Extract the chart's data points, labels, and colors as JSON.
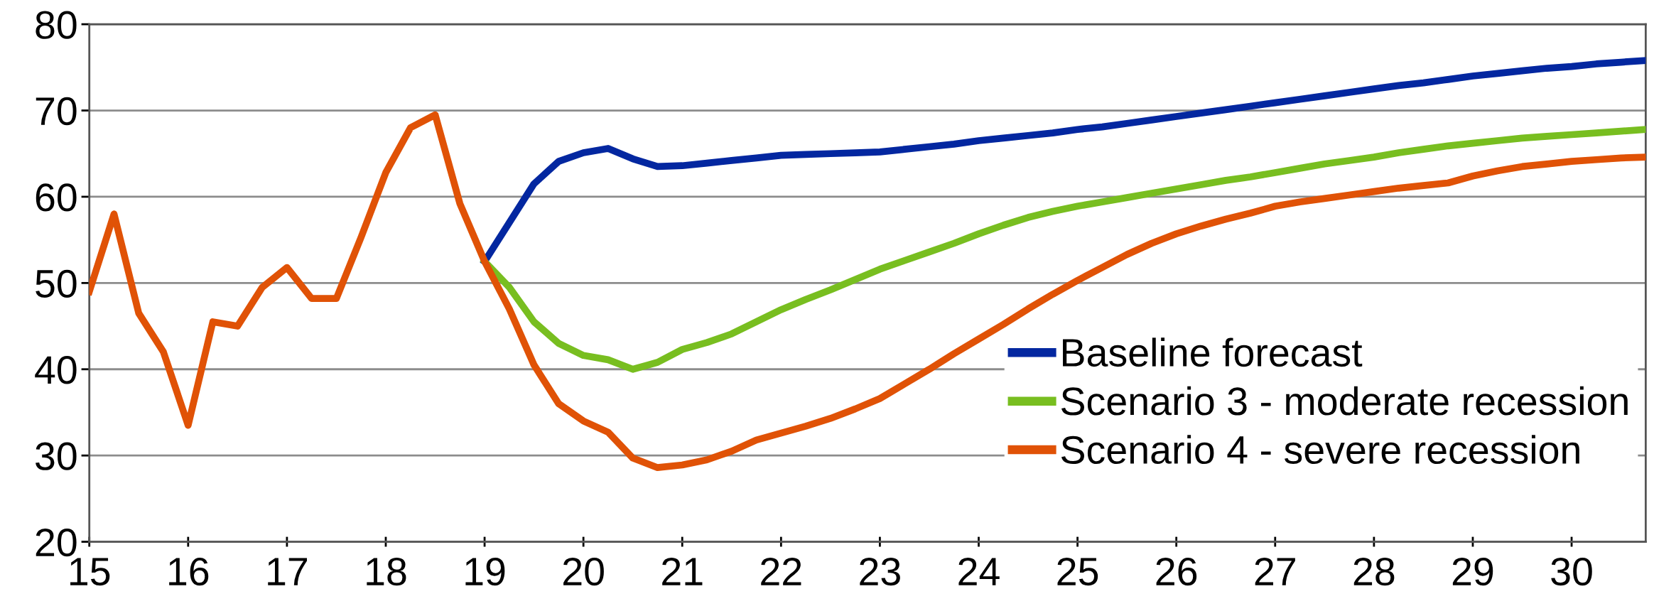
{
  "chart_data": {
    "type": "line",
    "xlim": [
      15,
      30.75
    ],
    "xticks": [
      15,
      16,
      17,
      18,
      19,
      20,
      21,
      22,
      23,
      24,
      25,
      26,
      27,
      28,
      29,
      30
    ],
    "ylim": [
      20,
      80
    ],
    "yticks": [
      20,
      30,
      40,
      50,
      60,
      70,
      80
    ],
    "grid": "y",
    "legend": "bottom right",
    "marker": "none",
    "line_style": "solid",
    "series": [
      {
        "name": "Baseline forecast",
        "color": "#0327a0",
        "x": [
          19,
          19.25,
          19.5,
          19.75,
          20,
          20.25,
          20.5,
          20.75,
          21,
          21.25,
          21.5,
          21.75,
          22,
          22.25,
          22.5,
          22.75,
          23,
          23.25,
          23.5,
          23.75,
          24,
          24.25,
          24.5,
          24.75,
          25,
          25.25,
          25.5,
          25.75,
          26,
          26.25,
          26.5,
          26.75,
          27,
          27.25,
          27.5,
          27.75,
          28,
          28.25,
          28.5,
          28.75,
          29,
          29.25,
          29.5,
          29.75,
          30,
          30.25,
          30.5,
          30.75
        ],
        "values": [
          52.5,
          57,
          61.5,
          64.1,
          65.1,
          65.6,
          64.4,
          63.5,
          63.6,
          63.9,
          64.2,
          64.5,
          64.8,
          64.9,
          65,
          65.1,
          65.2,
          65.5,
          65.8,
          66.1,
          66.5,
          66.8,
          67.1,
          67.4,
          67.8,
          68.1,
          68.5,
          68.9,
          69.3,
          69.7,
          70.1,
          70.5,
          70.9,
          71.3,
          71.7,
          72.1,
          72.5,
          72.9,
          73.2,
          73.6,
          74,
          74.3,
          74.6,
          74.9,
          75.1,
          75.4,
          75.6,
          75.8
        ]
      },
      {
        "name": "Scenario 3 - moderate recession",
        "color": "#78be20",
        "x": [
          19,
          19.25,
          19.5,
          19.75,
          20,
          20.25,
          20.5,
          20.75,
          21,
          21.25,
          21.5,
          21.75,
          22,
          22.25,
          22.5,
          22.75,
          23,
          23.25,
          23.5,
          23.75,
          24,
          24.25,
          24.5,
          24.75,
          25,
          25.25,
          25.5,
          25.75,
          26,
          26.25,
          26.5,
          26.75,
          27,
          27.25,
          27.5,
          27.75,
          28,
          28.25,
          28.5,
          28.75,
          29,
          29.25,
          29.5,
          29.75,
          30,
          30.25,
          30.5,
          30.75
        ],
        "values": [
          52.5,
          49.5,
          45.5,
          43,
          41.6,
          41.1,
          40,
          40.8,
          42.3,
          43.1,
          44.1,
          45.5,
          46.9,
          48.1,
          49.2,
          50.4,
          51.6,
          52.6,
          53.6,
          54.6,
          55.7,
          56.7,
          57.6,
          58.3,
          58.9,
          59.4,
          59.9,
          60.4,
          60.9,
          61.4,
          61.9,
          62.3,
          62.8,
          63.3,
          63.8,
          64.2,
          64.6,
          65.1,
          65.5,
          65.9,
          66.2,
          66.5,
          66.8,
          67,
          67.2,
          67.4,
          67.6,
          67.8
        ]
      },
      {
        "name": "Scenario 4 - severe recession",
        "color": "#e05206",
        "x": [
          15,
          15.25,
          15.5,
          15.75,
          16,
          16.25,
          16.5,
          16.75,
          17,
          17.25,
          17.5,
          17.75,
          18,
          18.25,
          18.5,
          18.75,
          19,
          19.25,
          19.5,
          19.75,
          20,
          20.25,
          20.5,
          20.75,
          21,
          21.25,
          21.5,
          21.75,
          22,
          22.25,
          22.5,
          22.75,
          23,
          23.25,
          23.5,
          23.75,
          24,
          24.25,
          24.5,
          24.75,
          25,
          25.25,
          25.5,
          25.75,
          26,
          26.25,
          26.5,
          26.75,
          27,
          27.25,
          27.5,
          27.75,
          28,
          28.25,
          28.5,
          28.75,
          29,
          29.25,
          29.5,
          29.75,
          30,
          30.25,
          30.5,
          30.75
        ],
        "values": [
          49,
          58,
          46.5,
          42,
          33.5,
          45.5,
          45,
          49.5,
          51.8,
          48.2,
          48.2,
          55.3,
          62.8,
          68,
          69.5,
          59.2,
          52.5,
          47,
          40.5,
          36,
          34,
          32.7,
          29.7,
          28.6,
          28.9,
          29.5,
          30.5,
          31.8,
          32.6,
          33.4,
          34.3,
          35.4,
          36.6,
          38.3,
          40,
          41.8,
          43.5,
          45.2,
          47,
          48.7,
          50.3,
          51.8,
          53.3,
          54.6,
          55.7,
          56.6,
          57.4,
          58.1,
          58.9,
          59.4,
          59.8,
          60.2,
          60.6,
          61,
          61.3,
          61.6,
          62.4,
          63,
          63.5,
          63.8,
          64.1,
          64.3,
          64.5,
          64.6
        ]
      }
    ]
  }
}
